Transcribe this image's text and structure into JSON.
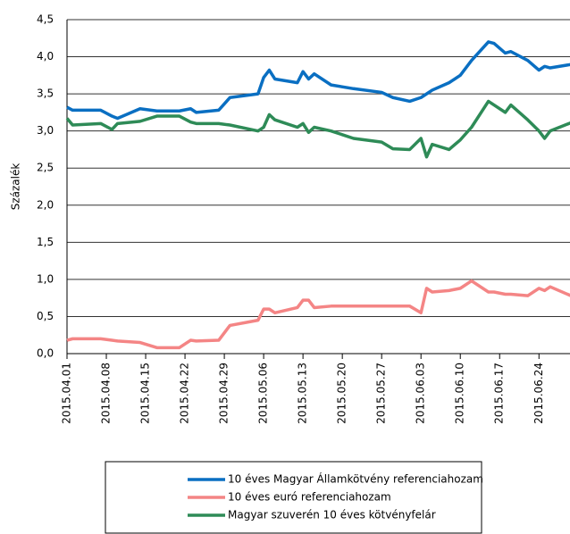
{
  "chart_data": {
    "type": "line",
    "y_label": "Százalék",
    "x": [
      "2015.04.01",
      "2015.04.02",
      "2015.04.07",
      "2015.04.09",
      "2015.04.10",
      "2015.04.14",
      "2015.04.17",
      "2015.04.21",
      "2015.04.23",
      "2015.04.24",
      "2015.04.28",
      "2015.04.30",
      "2015.05.05",
      "2015.05.06",
      "2015.05.07",
      "2015.05.08",
      "2015.05.12",
      "2015.05.13",
      "2015.05.14",
      "2015.05.15",
      "2015.05.18",
      "2015.05.22",
      "2015.05.27",
      "2015.05.29",
      "2015.06.01",
      "2015.06.03",
      "2015.06.04",
      "2015.06.05",
      "2015.06.08",
      "2015.06.10",
      "2015.06.12",
      "2015.06.15",
      "2015.06.16",
      "2015.06.18",
      "2015.06.19",
      "2015.06.22",
      "2015.06.24",
      "2015.06.25",
      "2015.06.26",
      "2015.06.30"
    ],
    "series": [
      {
        "name": "10 éves Magyar Államkötvény referenciahozam",
        "color": "#0a6fc2",
        "values": [
          3.32,
          3.28,
          3.28,
          3.2,
          3.17,
          3.3,
          3.27,
          3.27,
          3.3,
          3.25,
          3.28,
          3.45,
          3.5,
          3.72,
          3.82,
          3.7,
          3.65,
          3.8,
          3.7,
          3.77,
          3.62,
          3.57,
          3.52,
          3.45,
          3.4,
          3.45,
          3.5,
          3.55,
          3.65,
          3.75,
          3.95,
          4.2,
          4.18,
          4.05,
          4.07,
          3.95,
          3.82,
          3.87,
          3.85,
          3.9
        ]
      },
      {
        "name": "10 éves euró referenciahozam",
        "color": "#f48585",
        "values": [
          0.18,
          0.2,
          0.2,
          0.18,
          0.17,
          0.15,
          0.08,
          0.08,
          0.18,
          0.17,
          0.18,
          0.38,
          0.45,
          0.6,
          0.6,
          0.55,
          0.62,
          0.72,
          0.72,
          0.62,
          0.64,
          0.64,
          0.64,
          0.64,
          0.64,
          0.55,
          0.88,
          0.83,
          0.85,
          0.88,
          0.98,
          0.83,
          0.83,
          0.8,
          0.8,
          0.78,
          0.88,
          0.85,
          0.9,
          0.77
        ]
      },
      {
        "name": "Magyar szuverén 10 éves kötvényfelár",
        "color": "#2e8b57",
        "values": [
          3.17,
          3.08,
          3.1,
          3.02,
          3.1,
          3.13,
          3.2,
          3.2,
          3.12,
          3.1,
          3.1,
          3.08,
          3.0,
          3.05,
          3.22,
          3.15,
          3.05,
          3.1,
          2.98,
          3.05,
          3.0,
          2.9,
          2.85,
          2.76,
          2.75,
          2.9,
          2.65,
          2.82,
          2.75,
          2.88,
          3.05,
          3.4,
          3.35,
          3.25,
          3.35,
          3.15,
          3.0,
          2.9,
          3.0,
          3.12
        ]
      }
    ],
    "xlim": [
      "2015.04.01",
      "2015.06.30"
    ],
    "xticks": [
      "2015.04.01",
      "2015.04.08",
      "2015.04.15",
      "2015.04.22",
      "2015.04.29",
      "2015.05.06",
      "2015.05.13",
      "2015.05.20",
      "2015.05.27",
      "2015.06.03",
      "2015.06.10",
      "2015.06.17",
      "2015.06.24"
    ],
    "ylim": [
      0,
      4.5
    ],
    "yticks": [
      {
        "value": 0,
        "label": "0,0"
      },
      {
        "value": 0.5,
        "label": "0,5"
      },
      {
        "value": 1,
        "label": "1,0"
      },
      {
        "value": 1.5,
        "label": "1,5"
      },
      {
        "value": 2,
        "label": "2,0"
      },
      {
        "value": 2.5,
        "label": "2,5"
      },
      {
        "value": 3,
        "label": "3,0"
      },
      {
        "value": 3.5,
        "label": "3,5"
      },
      {
        "value": 4,
        "label": "4,0"
      },
      {
        "value": 4.5,
        "label": "4,5"
      }
    ],
    "grid": true,
    "legend": "bottom"
  }
}
